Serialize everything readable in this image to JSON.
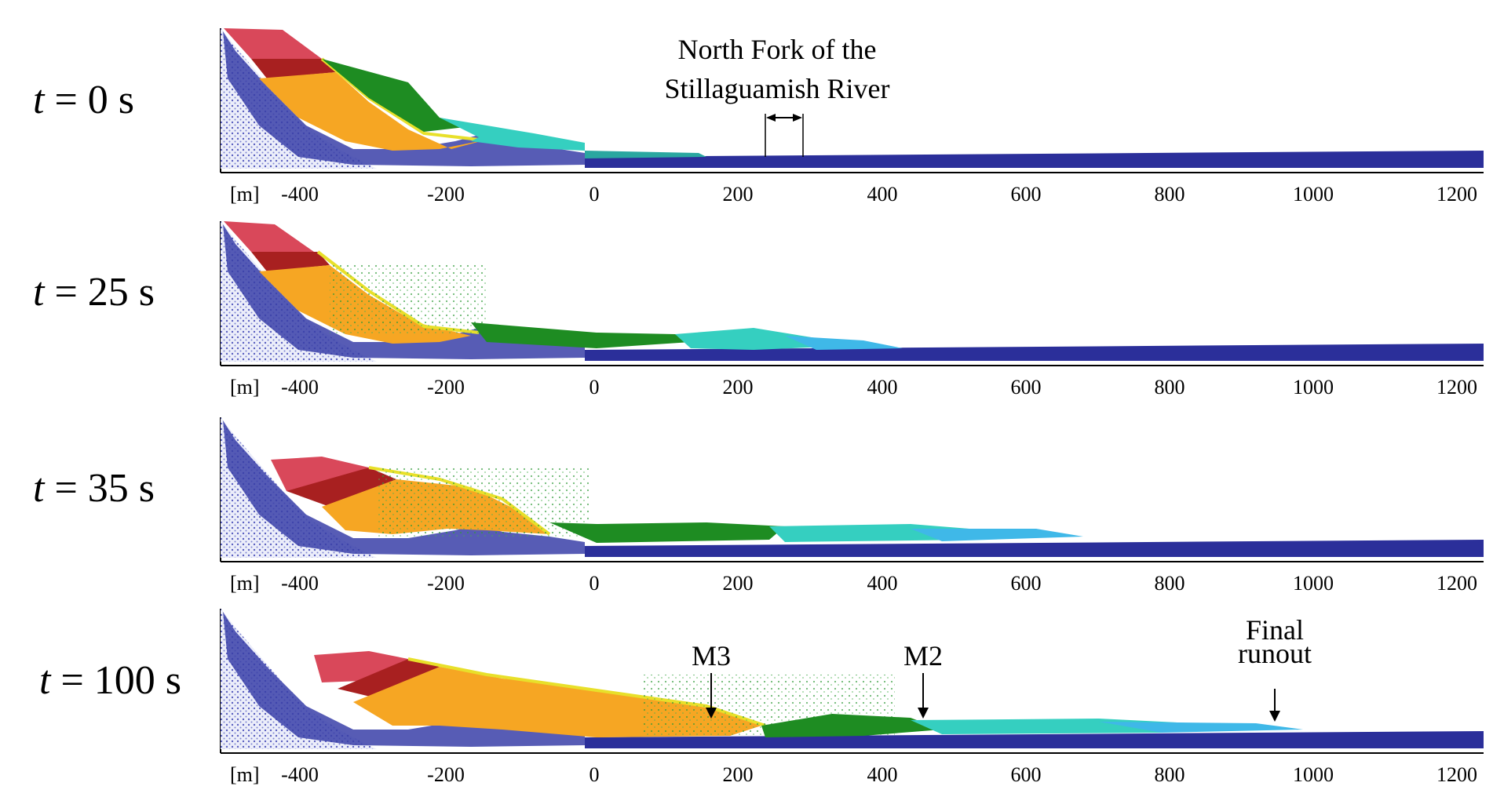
{
  "panels": [
    {
      "t_label": "t",
      "eq": " = 0 s"
    },
    {
      "t_label": "t",
      "eq": " = 25 s"
    },
    {
      "t_label": "t",
      "eq": " = 35 s"
    },
    {
      "t_label": "t",
      "eq": " = 100 s"
    }
  ],
  "axis": {
    "unit": "[m]",
    "ticks": [
      "-400",
      "-200",
      "0",
      "200",
      "400",
      "600",
      "800",
      "1000",
      "1200"
    ]
  },
  "annotations": {
    "river_line1": "North Fork of the",
    "river_line2": "Stillaguamish  River",
    "m3": "M3",
    "m2": "M2",
    "final_line1": "Final",
    "final_line2": "runout"
  },
  "colors": {
    "bedrock": "#2b2f9a",
    "bedrock_light": "#9aa0e0",
    "red": "#d9485a",
    "dark_red": "#a82020",
    "orange": "#f6a623",
    "yellow": "#e8e02a",
    "green": "#1e8c22",
    "cyan": "#35cfc0",
    "light_blue": "#3fb8e8"
  }
}
